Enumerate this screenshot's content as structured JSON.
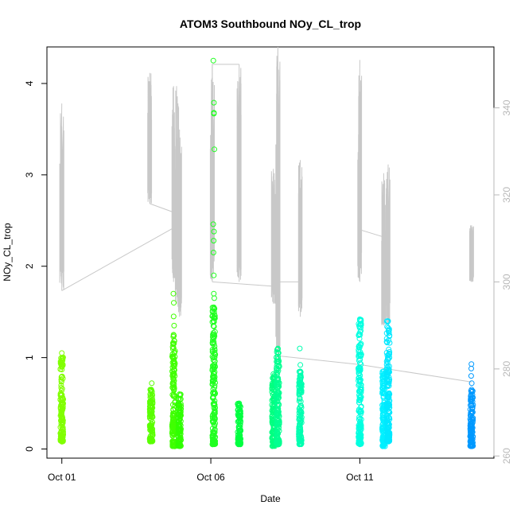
{
  "chart_data": {
    "type": "scatter",
    "title": "ATOM3 Southbound NOy_CL_trop",
    "xlabel": "Date",
    "ylabel": "NOy_CL_trop",
    "x_ticks": [
      "Oct 01",
      "Oct 06",
      "Oct 11"
    ],
    "x_tick_days": [
      1,
      6,
      11
    ],
    "xlim_days": [
      0.5,
      15.5
    ],
    "y_ticks": [
      0,
      1,
      2,
      3,
      4
    ],
    "ylim": [
      -0.1,
      4.4
    ],
    "y2_ticks": [
      260,
      280,
      300,
      320,
      340
    ],
    "y2lim": [
      259.5,
      354
    ],
    "grid": false,
    "series": [
      {
        "day": 1.0,
        "y_min": 0.08,
        "y_max": 1.05,
        "color": "#80ff00",
        "outliers": []
      },
      {
        "day": 4.0,
        "y_min": 0.08,
        "y_max": 0.65,
        "color": "#5aff00",
        "outliers": [
          0.72
        ]
      },
      {
        "day": 4.75,
        "y_min": 0.03,
        "y_max": 1.25,
        "color": "#40ff00",
        "outliers": [
          1.35,
          1.45,
          1.6,
          1.7
        ]
      },
      {
        "day": 4.95,
        "y_min": 0.03,
        "y_max": 0.6,
        "color": "#30ff00",
        "outliers": []
      },
      {
        "day": 6.1,
        "y_min": 0.05,
        "y_max": 1.55,
        "color": "#20ff20",
        "outliers": [
          1.65,
          1.7,
          1.9,
          2.15,
          2.28,
          2.38,
          2.46,
          3.28,
          3.67,
          3.68,
          3.79,
          4.25
        ]
      },
      {
        "day": 6.95,
        "y_min": 0.05,
        "y_max": 0.5,
        "color": "#00ff40",
        "outliers": []
      },
      {
        "day": 8.1,
        "y_min": 0.03,
        "y_max": 0.82,
        "color": "#00ff80",
        "outliers": []
      },
      {
        "day": 8.25,
        "y_min": 0.05,
        "y_max": 1.1,
        "color": "#00ff90",
        "outliers": []
      },
      {
        "day": 9.0,
        "y_min": 0.05,
        "y_max": 0.85,
        "color": "#00ffb0",
        "outliers": [
          0.92,
          1.1
        ]
      },
      {
        "day": 11.0,
        "y_min": 0.05,
        "y_max": 1.42,
        "color": "#00ffe0",
        "outliers": []
      },
      {
        "day": 11.8,
        "y_min": 0.03,
        "y_max": 0.85,
        "color": "#00f0ff",
        "outliers": []
      },
      {
        "day": 11.95,
        "y_min": 0.08,
        "y_max": 1.4,
        "color": "#00e8ff",
        "outliers": []
      },
      {
        "day": 14.75,
        "y_min": 0.03,
        "y_max": 0.65,
        "color": "#0099ff",
        "outliers": [
          0.72,
          0.8,
          0.88,
          0.93
        ]
      }
    ],
    "altitude_line": {
      "color": "#c8c8c8",
      "spikes": [
        {
          "day": 1.0,
          "base": 298,
          "peak": 341
        },
        {
          "day": 3.95,
          "base": 318,
          "peak": 348
        },
        {
          "day": 4.75,
          "base": 300,
          "peak": 345
        },
        {
          "day": 4.85,
          "base": 295,
          "peak": 345
        },
        {
          "day": 4.95,
          "base": 292,
          "peak": 335
        },
        {
          "day": 6.05,
          "base": 300,
          "peak": 350
        },
        {
          "day": 6.95,
          "base": 300,
          "peak": 350
        },
        {
          "day": 8.1,
          "base": 295,
          "peak": 326
        },
        {
          "day": 8.25,
          "base": 282,
          "peak": 354
        },
        {
          "day": 9.0,
          "base": 292,
          "peak": 328
        },
        {
          "day": 11.0,
          "base": 300,
          "peak": 351
        },
        {
          "day": 11.8,
          "base": 290,
          "peak": 325
        },
        {
          "day": 11.95,
          "base": 290,
          "peak": 327
        },
        {
          "day": 14.75,
          "base": 300,
          "peak": 313
        }
      ],
      "connectors": [
        [
          [
            1.0,
            298
          ],
          [
            4.9,
            313
          ]
        ],
        [
          [
            3.95,
            318
          ],
          [
            4.75,
            316
          ]
        ],
        [
          [
            6.05,
            315
          ],
          [
            6.05,
            350
          ],
          [
            6.95,
            350
          ]
        ],
        [
          [
            6.05,
            300
          ],
          [
            8.1,
            299
          ]
        ],
        [
          [
            8.1,
            300
          ],
          [
            9.0,
            300
          ]
        ],
        [
          [
            8.25,
            283
          ],
          [
            11.0,
            281
          ]
        ],
        [
          [
            11.0,
            312
          ],
          [
            11.95,
            310
          ]
        ],
        [
          [
            11.0,
            281
          ],
          [
            14.75,
            277
          ]
        ]
      ]
    }
  }
}
